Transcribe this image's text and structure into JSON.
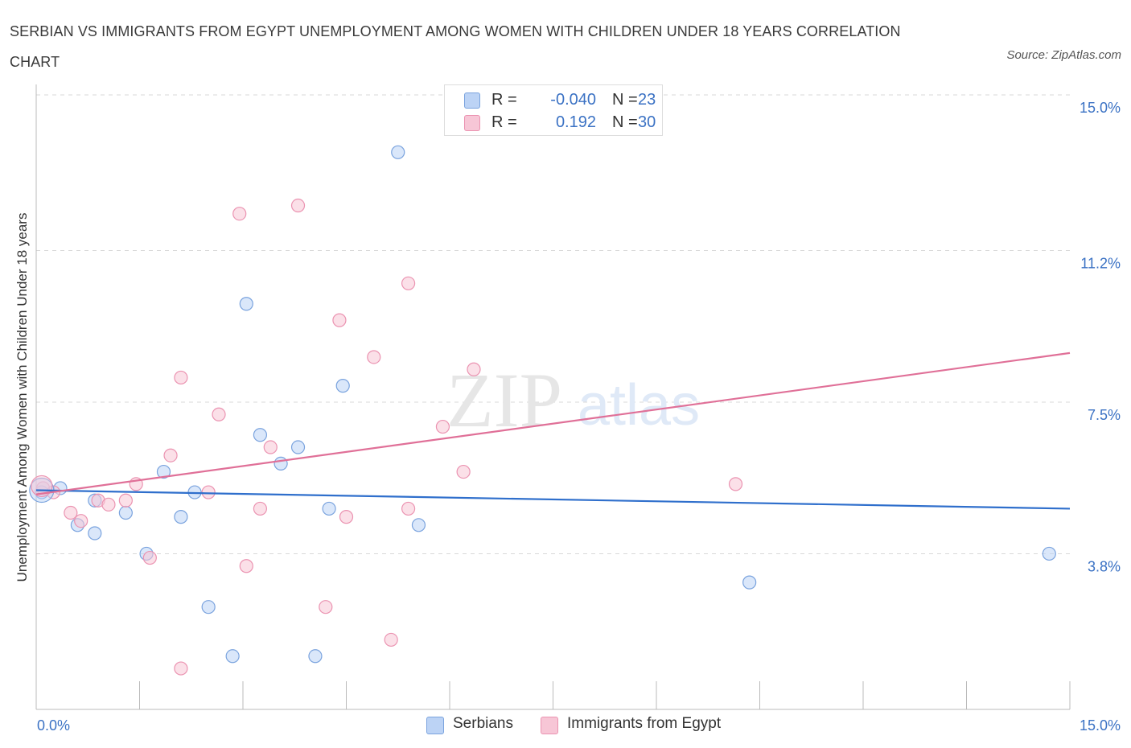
{
  "title": "SERBIAN VS IMMIGRANTS FROM EGYPT UNEMPLOYMENT AMONG WOMEN WITH CHILDREN UNDER 18 YEARS CORRELATION CHART",
  "source": "Source: ZipAtlas.com",
  "watermark": {
    "zip": "ZIP",
    "atlas": "atlas"
  },
  "legend_top": {
    "rows": [
      {
        "r_label": "R =",
        "r_value": "-0.040",
        "n_label": "N =",
        "n_value": "23"
      },
      {
        "r_label": "R =",
        "r_value": "0.192",
        "n_label": "N =",
        "n_value": "30"
      }
    ]
  },
  "legend_bottom": {
    "items": [
      "Serbians",
      "Immigrants from Egypt"
    ]
  },
  "colors": {
    "serbians_fill": "#bcd3f5",
    "serbians_stroke": "#7aa3de",
    "serbians_line": "#2f6fcc",
    "egypt_fill": "#f7c6d6",
    "egypt_stroke": "#eb93b1",
    "egypt_line": "#e07098",
    "tick_label": "#3b72c4",
    "grid": "#d8d8d8"
  },
  "chart_data": {
    "type": "scatter",
    "title": "SERBIAN VS IMMIGRANTS FROM EGYPT UNEMPLOYMENT AMONG WOMEN WITH CHILDREN UNDER 18 YEARS CORRELATION CHART",
    "xlabel": "",
    "ylabel": "Unemployment Among Women with Children Under 18 years",
    "xlim": [
      0,
      15
    ],
    "ylim": [
      0,
      15
    ],
    "x_tick_labels": [
      "0.0%",
      "15.0%"
    ],
    "y_ticks": [
      3.8,
      7.5,
      11.2,
      15.0
    ],
    "y_tick_labels": [
      "3.8%",
      "7.5%",
      "11.2%",
      "15.0%"
    ],
    "grid": true,
    "legend_position": "bottom",
    "series": [
      {
        "name": "Serbians",
        "color": "#bcd3f5",
        "points": [
          {
            "x": 0.08,
            "y": 5.3
          },
          {
            "x": 0.35,
            "y": 5.4
          },
          {
            "x": 0.6,
            "y": 4.5
          },
          {
            "x": 0.85,
            "y": 4.3
          },
          {
            "x": 0.85,
            "y": 5.1
          },
          {
            "x": 1.3,
            "y": 4.8
          },
          {
            "x": 1.6,
            "y": 3.8
          },
          {
            "x": 1.85,
            "y": 5.8
          },
          {
            "x": 2.1,
            "y": 4.7
          },
          {
            "x": 2.3,
            "y": 5.3
          },
          {
            "x": 2.5,
            "y": 2.5
          },
          {
            "x": 2.85,
            "y": 1.3
          },
          {
            "x": 3.05,
            "y": 9.9
          },
          {
            "x": 3.25,
            "y": 6.7
          },
          {
            "x": 3.55,
            "y": 6.0
          },
          {
            "x": 3.8,
            "y": 6.4
          },
          {
            "x": 4.05,
            "y": 1.3
          },
          {
            "x": 4.25,
            "y": 4.9
          },
          {
            "x": 4.45,
            "y": 7.9
          },
          {
            "x": 5.25,
            "y": 13.6
          },
          {
            "x": 5.55,
            "y": 4.5
          },
          {
            "x": 10.35,
            "y": 3.1
          },
          {
            "x": 14.7,
            "y": 3.8
          }
        ]
      },
      {
        "name": "Immigrants from Egypt",
        "color": "#f7c6d6",
        "points": [
          {
            "x": 0.1,
            "y": 5.4
          },
          {
            "x": 0.25,
            "y": 5.3
          },
          {
            "x": 0.5,
            "y": 4.8
          },
          {
            "x": 0.65,
            "y": 4.6
          },
          {
            "x": 0.9,
            "y": 5.1
          },
          {
            "x": 1.05,
            "y": 5.0
          },
          {
            "x": 1.3,
            "y": 5.1
          },
          {
            "x": 1.45,
            "y": 5.5
          },
          {
            "x": 1.65,
            "y": 3.7
          },
          {
            "x": 1.95,
            "y": 6.2
          },
          {
            "x": 2.1,
            "y": 8.1
          },
          {
            "x": 2.1,
            "y": 1.0
          },
          {
            "x": 2.5,
            "y": 5.3
          },
          {
            "x": 2.65,
            "y": 7.2
          },
          {
            "x": 2.95,
            "y": 12.1
          },
          {
            "x": 3.05,
            "y": 3.5
          },
          {
            "x": 3.25,
            "y": 4.9
          },
          {
            "x": 3.4,
            "y": 6.4
          },
          {
            "x": 3.8,
            "y": 12.3
          },
          {
            "x": 4.2,
            "y": 2.5
          },
          {
            "x": 4.4,
            "y": 9.5
          },
          {
            "x": 4.5,
            "y": 4.7
          },
          {
            "x": 4.9,
            "y": 8.6
          },
          {
            "x": 5.15,
            "y": 1.7
          },
          {
            "x": 5.4,
            "y": 4.9
          },
          {
            "x": 5.4,
            "y": 10.4
          },
          {
            "x": 5.9,
            "y": 6.9
          },
          {
            "x": 6.2,
            "y": 5.8
          },
          {
            "x": 6.35,
            "y": 8.3
          },
          {
            "x": 10.15,
            "y": 5.5
          }
        ]
      }
    ],
    "trendlines": [
      {
        "name": "Serbians",
        "x": [
          0,
          15
        ],
        "y": [
          5.35,
          4.9
        ]
      },
      {
        "name": "Immigrants from Egypt",
        "x": [
          0,
          15
        ],
        "y": [
          5.25,
          8.7
        ]
      }
    ]
  }
}
